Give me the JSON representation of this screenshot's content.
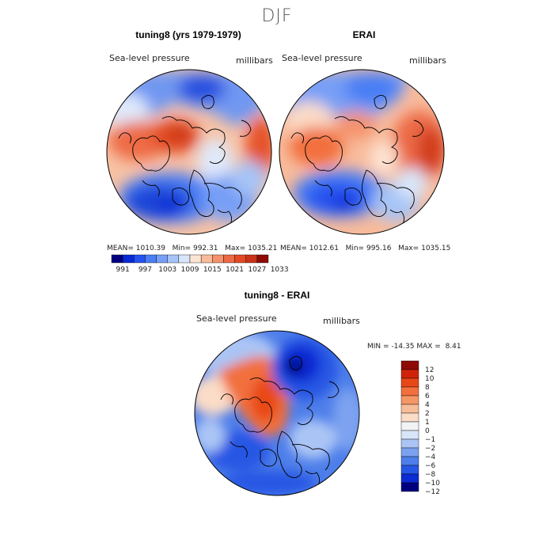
{
  "figure_title": "DJF",
  "chart_data": [
    {
      "type": "contour-map",
      "title": "tuning8 (yrs 1979-1979)",
      "variable": "Sea-level pressure",
      "units": "millibars",
      "mean_label": "MEAN=",
      "mean": "1010.39",
      "min_label": "Min=",
      "min": "992.31",
      "max_label": "Max=",
      "max": "1035.21"
    },
    {
      "type": "contour-map",
      "title": "ERAI",
      "variable": "Sea-level pressure",
      "units": "millibars",
      "mean_label": "MEAN=",
      "mean": "1012.61",
      "min_label": "Min=",
      "min": "995.16",
      "max_label": "Max=",
      "max": "1035.15"
    },
    {
      "type": "contour-map",
      "title": "tuning8 - ERAI",
      "variable": "Sea-level pressure",
      "units": "millibars",
      "min_label": "MIN =",
      "min": "-14.35",
      "max_label": "MAX =",
      "max": "8.41"
    }
  ],
  "shared_colorbar": {
    "colors": [
      "#00007f",
      "#0a2ad6",
      "#2552f0",
      "#4a7ef5",
      "#779ff6",
      "#a6c4f7",
      "#d8e6fa",
      "#fde3d2",
      "#f8bb9b",
      "#f4926c",
      "#ec6a46",
      "#e34a24",
      "#c9331a",
      "#8e0b05"
    ],
    "tick_labels": [
      "991",
      "997",
      "1003",
      "1009",
      "1015",
      "1021",
      "1027",
      "1033"
    ]
  },
  "diff_colorbar": {
    "colors": [
      "#8e0b05",
      "#d0220a",
      "#e84818",
      "#f2703e",
      "#f59666",
      "#f7bc98",
      "#fbdcc7",
      "#f1f3f6",
      "#d8e5f8",
      "#aac5f5",
      "#7ba2f0",
      "#4d7eea",
      "#2656e4",
      "#0b2bd4",
      "#00007f"
    ],
    "tick_labels": [
      "12",
      "10",
      "8",
      "6",
      "4",
      "2",
      "1",
      "0",
      "−1",
      "−2",
      "−4",
      "−6",
      "−8",
      "−10",
      "−12"
    ]
  }
}
